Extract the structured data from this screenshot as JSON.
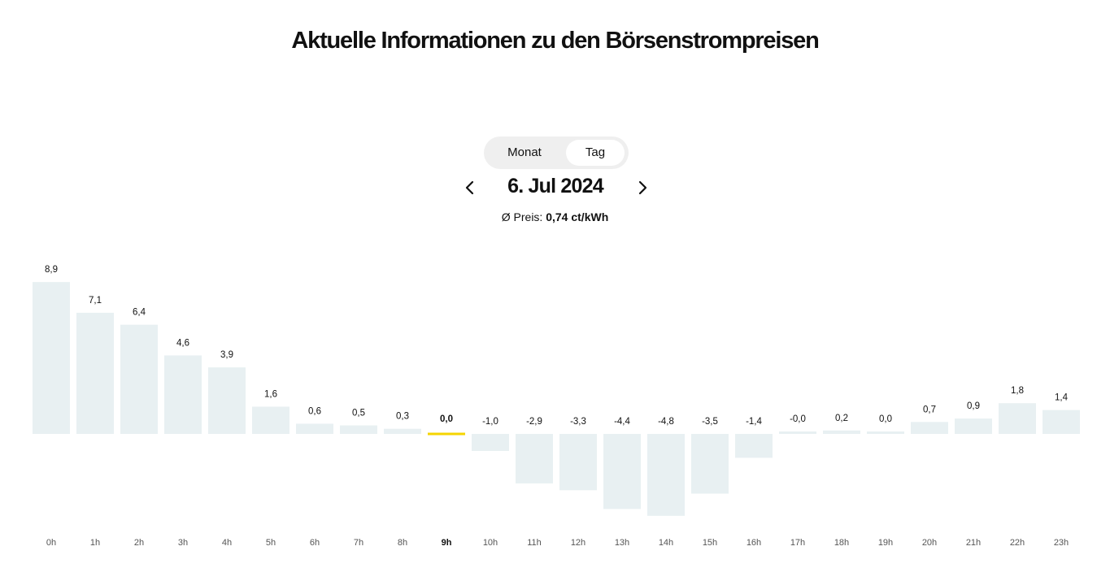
{
  "header": {
    "title": "Aktuelle Informationen zu den Börsenstrompreisen"
  },
  "toggle": {
    "month_label": "Monat",
    "day_label": "Tag",
    "selected": "Tag"
  },
  "date_nav": {
    "date": "6. Jul 2024",
    "prev_icon": "chevron-left-icon",
    "next_icon": "chevron-right-icon"
  },
  "summary": {
    "avg_label": "Ø Preis:",
    "avg_value": "0,74 ct/kWh"
  },
  "colors": {
    "bar": "#e8f0f2",
    "active": "#f5d400",
    "text": "#111111",
    "tick": "#555555"
  },
  "chart_data": {
    "type": "bar",
    "categories": [
      "0h",
      "1h",
      "2h",
      "3h",
      "4h",
      "5h",
      "6h",
      "7h",
      "8h",
      "9h",
      "10h",
      "11h",
      "12h",
      "13h",
      "14h",
      "15h",
      "16h",
      "17h",
      "18h",
      "19h",
      "20h",
      "21h",
      "22h",
      "23h"
    ],
    "values": [
      8.9,
      7.1,
      6.4,
      4.6,
      3.9,
      1.6,
      0.6,
      0.5,
      0.3,
      0.0,
      -1.0,
      -2.9,
      -3.3,
      -4.4,
      -4.8,
      -3.5,
      -1.4,
      -0.0,
      0.2,
      0.0,
      0.7,
      0.9,
      1.8,
      1.4
    ],
    "value_labels": [
      "8,9",
      "7,1",
      "6,4",
      "4,6",
      "3,9",
      "1,6",
      "0,6",
      "0,5",
      "0,3",
      "0,0",
      "-1,0",
      "-2,9",
      "-3,3",
      "-4,4",
      "-4,8",
      "-3,5",
      "-1,4",
      "-0,0",
      "0,2",
      "0,0",
      "0,7",
      "0,9",
      "1,8",
      "1,4"
    ],
    "highlighted_index": 9,
    "grid": false,
    "legend": "none"
  }
}
